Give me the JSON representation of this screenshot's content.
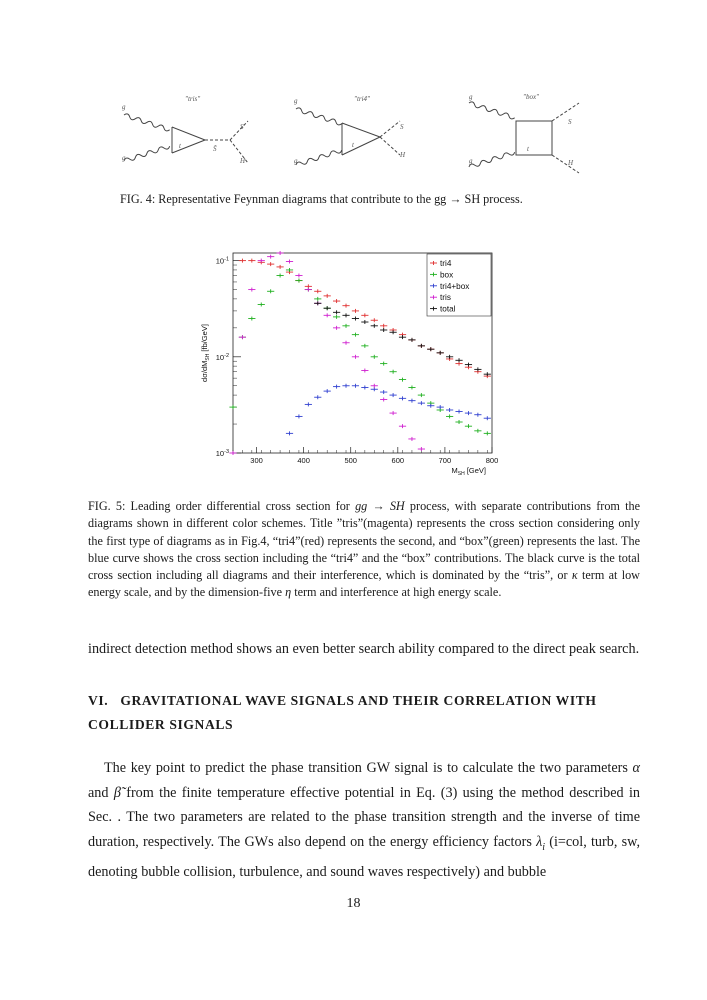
{
  "figure4": {
    "diagrams": [
      {
        "title": "\"tris\"",
        "gluon": "g",
        "quark": "t",
        "prop": "S̃",
        "out1": "S",
        "out2": "H"
      },
      {
        "title": "\"tri4\"",
        "gluon": "g",
        "quark": "t",
        "out1": "S",
        "out2": "H"
      },
      {
        "title": "\"box\"",
        "gluon": "g",
        "quark": "t",
        "out1": "S",
        "out2": "H"
      }
    ],
    "caption": "FIG. 4: Representative Feynman diagrams that contribute to the gg → SH process."
  },
  "chart_data": {
    "type": "scatter",
    "title": "",
    "xlabel": "M_SH [GeV]",
    "ylabel": "dσ/dM_SH [fb/GeV]",
    "xlim": [
      250,
      800
    ],
    "ylim": [
      0.001,
      0.12
    ],
    "yscale": "log",
    "xticks": [
      300,
      400,
      500,
      600,
      700,
      800
    ],
    "yticks": [
      "10^-3",
      "10^-2",
      "10^-1"
    ],
    "legend_position": "top-right",
    "series": [
      {
        "name": "tri4",
        "color": "#e03030",
        "x": [
          270,
          290,
          310,
          330,
          350,
          370,
          390,
          410,
          430,
          450,
          470,
          490,
          510,
          530,
          550,
          570,
          590,
          610,
          630,
          650,
          670,
          690,
          710,
          730,
          750,
          770,
          790
        ],
        "y": [
          0.1,
          0.1,
          0.096,
          0.092,
          0.086,
          0.076,
          0.062,
          0.054,
          0.048,
          0.043,
          0.038,
          0.034,
          0.03,
          0.027,
          0.024,
          0.021,
          0.019,
          0.017,
          0.015,
          0.013,
          0.012,
          0.011,
          0.0095,
          0.0085,
          0.0078,
          0.007,
          0.0063
        ]
      },
      {
        "name": "box",
        "color": "#20b020",
        "x": [
          250,
          270,
          290,
          310,
          330,
          350,
          370,
          390,
          410,
          430,
          450,
          470,
          490,
          510,
          530,
          550,
          570,
          590,
          610,
          630,
          650,
          670,
          690,
          710,
          730,
          750,
          770,
          790
        ],
        "y": [
          0.003,
          0.016,
          0.025,
          0.035,
          0.048,
          0.07,
          0.08,
          0.062,
          0.05,
          0.04,
          0.032,
          0.026,
          0.021,
          0.017,
          0.013,
          0.01,
          0.0085,
          0.007,
          0.0058,
          0.0048,
          0.004,
          0.0033,
          0.0028,
          0.0024,
          0.0021,
          0.0019,
          0.0017,
          0.0016
        ]
      },
      {
        "name": "tri4+box",
        "color": "#3040d0",
        "x": [
          370,
          390,
          410,
          430,
          450,
          470,
          490,
          510,
          530,
          550,
          570,
          590,
          610,
          630,
          650,
          670,
          690,
          710,
          730,
          750,
          770,
          790
        ],
        "y": [
          0.0016,
          0.0024,
          0.0032,
          0.0038,
          0.0044,
          0.0049,
          0.005,
          0.005,
          0.0048,
          0.0046,
          0.0043,
          0.004,
          0.0037,
          0.0035,
          0.0033,
          0.0031,
          0.003,
          0.0028,
          0.0027,
          0.0026,
          0.0025,
          0.0023
        ]
      },
      {
        "name": "tris",
        "color": "#d020d0",
        "x": [
          250,
          270,
          290,
          310,
          330,
          350,
          370,
          390,
          410,
          430,
          450,
          470,
          490,
          510,
          530,
          550,
          570,
          590,
          610,
          630,
          650,
          670,
          690
        ],
        "y": [
          0.001,
          0.016,
          0.05,
          0.1,
          0.11,
          0.12,
          0.098,
          0.07,
          0.05,
          0.036,
          0.027,
          0.02,
          0.014,
          0.01,
          0.0072,
          0.005,
          0.0036,
          0.0026,
          0.0019,
          0.0014,
          0.0011,
          0.0009,
          0.0008
        ]
      },
      {
        "name": "total",
        "color": "#111111",
        "x": [
          430,
          450,
          470,
          490,
          510,
          530,
          550,
          570,
          590,
          610,
          630,
          650,
          670,
          690,
          710,
          730,
          750,
          770,
          790
        ],
        "y": [
          0.036,
          0.032,
          0.029,
          0.027,
          0.025,
          0.023,
          0.021,
          0.019,
          0.018,
          0.016,
          0.015,
          0.013,
          0.012,
          0.011,
          0.01,
          0.0092,
          0.0083,
          0.0074,
          0.0066
        ]
      }
    ]
  },
  "figure5": {
    "caption_parts": [
      "FIG. 5: Leading order differential cross section for ",
      "gg → SH",
      " process, with separate contributions from the diagrams shown in different color schemes. Title ”tris”(magenta) represents the cross section considering only the first type of diagrams as in Fig.4, “tri4”(red) represents the second, and “box”(green) represents the last. The blue curve shows the cross section including the “tri4” and the “box” contributions. The black curve is the total cross section including all diagrams and their interference, which is dominated by the “tris”, or ",
      "κ",
      " term at low energy scale, and by the dimension-five ",
      "η",
      " term and interference at high energy scale."
    ]
  },
  "paragraph1": "indirect detection method shows an even better search ability compared to the direct peak search.",
  "section": {
    "number": "VI.",
    "title": "GRAVITATIONAL WAVE SIGNALS AND THEIR CORRELATION WITH COLLIDER SIGNALS"
  },
  "paragraph2_parts": [
    "The key point to predict the phase transition GW signal is to calculate the two parameters ",
    "α",
    " and ",
    "β̃",
    " from the finite temperature effective potential in Eq. (3) using the method described in Sec. . The two parameters are related to the phase transition strength and the inverse of time duration, respectively. The GWs also depend on the energy efficiency factors ",
    "λ",
    "i",
    " (i=col, turb, sw, denoting bubble collision, turbulence, and sound waves respectively) and bubble"
  ],
  "page_number": "18"
}
